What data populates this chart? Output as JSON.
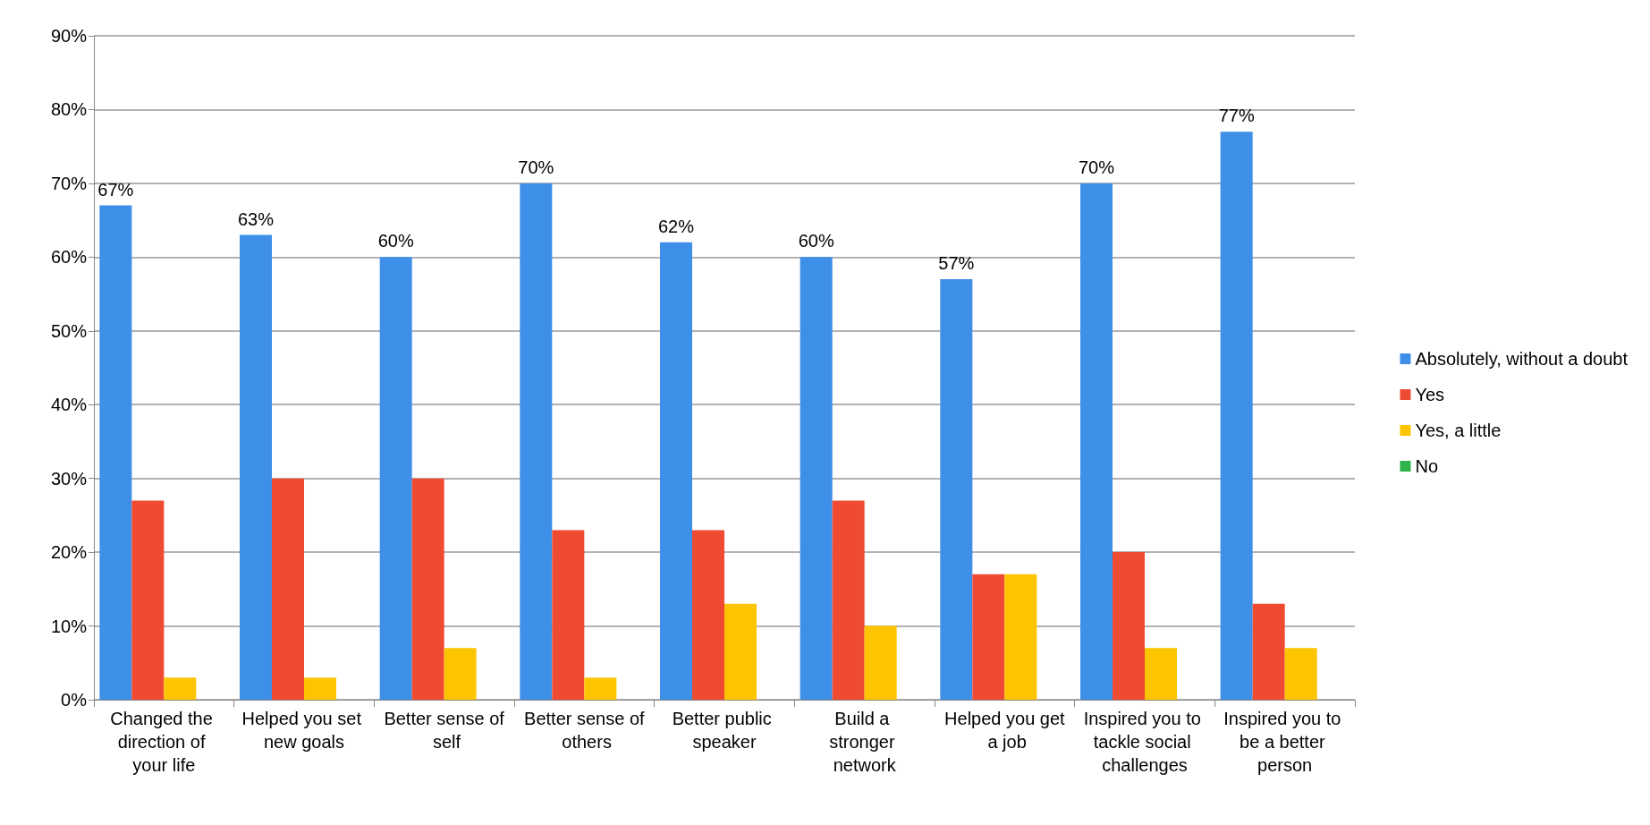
{
  "chart_data": {
    "type": "bar",
    "categories": [
      "Changed the direction of your life",
      "Helped you set new goals",
      "Better sense of self",
      "Better sense of others",
      "Better public speaker",
      "Build a stronger network",
      "Helped you get a job",
      "Inspired you to tackle social challenges",
      "Inspired you to be a better person"
    ],
    "series": [
      {
        "name": "Absolutely, without a doubt",
        "color": "#3d8fe8",
        "values": [
          67,
          63,
          60,
          70,
          62,
          60,
          57,
          70,
          77
        ],
        "value_labels": [
          "67%",
          "63%",
          "60%",
          "70%",
          "62%",
          "60%",
          "57%",
          "70%",
          "77%"
        ]
      },
      {
        "name": "Yes",
        "color": "#ef4b33",
        "values": [
          27,
          30,
          30,
          23,
          23,
          27,
          17,
          20,
          13
        ]
      },
      {
        "name": "Yes, a little",
        "color": "#fcc500",
        "values": [
          3,
          3,
          7,
          3,
          13,
          10,
          17,
          7,
          7
        ]
      },
      {
        "name": "No",
        "color": "#2db34a",
        "values": [
          0,
          0,
          0,
          0,
          0,
          0,
          0,
          0,
          0
        ]
      }
    ],
    "ylim": [
      0,
      90
    ],
    "yticks": [
      {
        "value": 0,
        "label": "0%"
      },
      {
        "value": 10,
        "label": "10%"
      },
      {
        "value": 20,
        "label": "20%"
      },
      {
        "value": 30,
        "label": "30%"
      },
      {
        "value": 40,
        "label": "40%"
      },
      {
        "value": 50,
        "label": "50%"
      },
      {
        "value": 60,
        "label": "60%"
      },
      {
        "value": 70,
        "label": "70%"
      },
      {
        "value": 80,
        "label": "80%"
      },
      {
        "value": 90,
        "label": "90%"
      }
    ],
    "grid": "y",
    "legend": "right"
  }
}
